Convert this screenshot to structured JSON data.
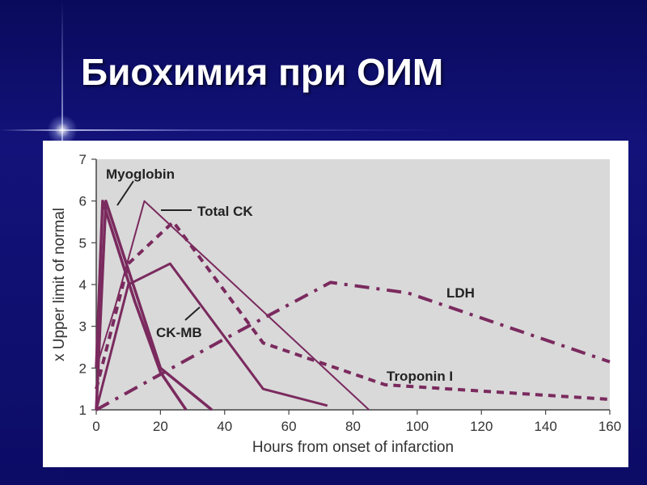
{
  "slide": {
    "title": "Биохимия при ОИМ"
  },
  "colors": {
    "background": "#0c0c66",
    "title": "#ffffff",
    "plot_area": "#d9d9d9",
    "series": "#7a2a5e"
  },
  "chart_data": {
    "type": "line",
    "xlabel": "Hours from onset of infarction",
    "ylabel": "x Upper limit of normal",
    "xlim": [
      0,
      160
    ],
    "ylim": [
      1,
      7
    ],
    "x_ticks": [
      0,
      20,
      40,
      60,
      80,
      100,
      120,
      140,
      160
    ],
    "y_ticks": [
      1,
      2,
      3,
      4,
      5,
      6,
      7
    ],
    "grid": false,
    "series": [
      {
        "name": "Myoglobin",
        "style": "solid-thick",
        "points": [
          [
            0,
            1
          ],
          [
            3,
            6
          ],
          [
            20,
            2
          ],
          [
            36,
            1
          ]
        ],
        "points_b": [
          [
            0,
            2
          ],
          [
            2,
            6
          ],
          [
            12,
            3.6
          ],
          [
            20,
            1.9
          ],
          [
            28,
            1
          ]
        ]
      },
      {
        "name": "Total CK",
        "style": "solid-thin",
        "points": [
          [
            0,
            2
          ],
          [
            6,
            3.5
          ],
          [
            15,
            6
          ],
          [
            85,
            1
          ]
        ]
      },
      {
        "name": "CK-MB",
        "style": "solid",
        "points": [
          [
            0,
            1
          ],
          [
            10,
            4
          ],
          [
            23,
            4.5
          ],
          [
            52,
            1.5
          ],
          [
            72,
            1.1
          ]
        ]
      },
      {
        "name": "Troponin I",
        "style": "dashed",
        "points": [
          [
            0,
            1.5
          ],
          [
            10,
            4.5
          ],
          [
            24,
            5.5
          ],
          [
            52,
            2.6
          ],
          [
            90,
            1.6
          ],
          [
            110,
            1.5
          ],
          [
            160,
            1.25
          ]
        ]
      },
      {
        "name": "LDH",
        "style": "dash-dot",
        "points": [
          [
            0,
            1
          ],
          [
            40,
            2.7
          ],
          [
            73,
            4.05
          ],
          [
            97,
            3.8
          ],
          [
            160,
            2.15
          ]
        ]
      }
    ]
  }
}
